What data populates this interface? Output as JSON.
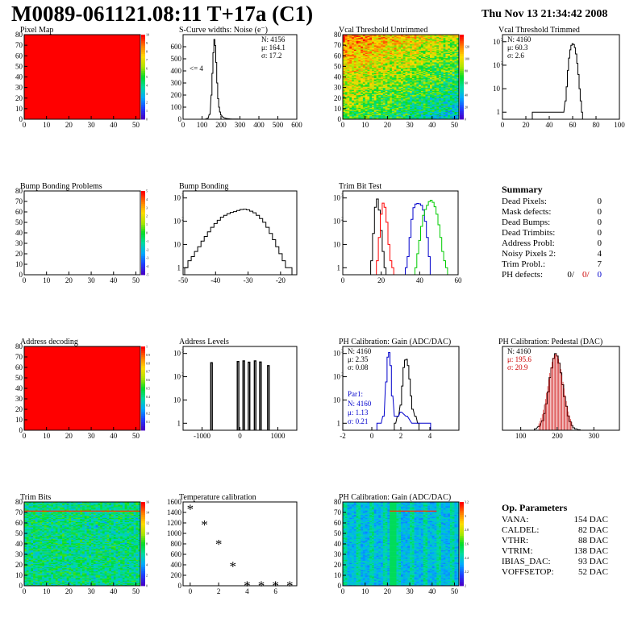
{
  "page": {
    "title": "M0089-061121.08:11 T+17a (C1)",
    "date": "Thu Nov 13 21:34:42 2008"
  },
  "chart_data": [
    {
      "id": "pixel-map",
      "type": "heatmap",
      "title": "Pixel Map",
      "xlim": [
        0,
        52
      ],
      "ylim": [
        0,
        80
      ],
      "xticks": [
        0,
        10,
        20,
        30,
        40,
        50
      ],
      "yticks": [
        0,
        10,
        20,
        30,
        40,
        50,
        60,
        70,
        80
      ],
      "fill": "uniform",
      "fill_color": "#ff0000",
      "zlim": [
        0,
        10
      ],
      "palette_ticks": [
        0,
        1,
        2,
        3,
        4,
        5,
        6,
        7,
        8,
        9,
        10
      ]
    },
    {
      "id": "scurve-noise",
      "type": "histogram",
      "title": "S-Curve widths: Noise (e⁻)",
      "xlim": [
        0,
        600
      ],
      "ylim": [
        0,
        700
      ],
      "xticks": [
        0,
        100,
        200,
        300,
        400,
        500,
        600
      ],
      "yticks": [
        0,
        100,
        200,
        300,
        400,
        500,
        600
      ],
      "x": [
        120,
        130,
        140,
        150,
        155,
        160,
        165,
        170,
        175,
        180,
        185,
        190,
        195,
        200,
        210,
        220,
        230,
        240,
        250,
        260,
        270,
        280,
        290
      ],
      "y": [
        2,
        8,
        40,
        200,
        380,
        550,
        660,
        610,
        470,
        300,
        170,
        100,
        60,
        35,
        18,
        10,
        6,
        4,
        3,
        2,
        2,
        1,
        1
      ],
      "annotation": "<= 4",
      "stats": {
        "N": "4156",
        "mu": "164.1",
        "sigma": "17.2"
      }
    },
    {
      "id": "vcal-untrimmed",
      "type": "heatmap",
      "title": "Vcal Threshold Untrimmed",
      "xlim": [
        0,
        52
      ],
      "ylim": [
        0,
        80
      ],
      "xticks": [
        0,
        10,
        20,
        30,
        40,
        50
      ],
      "yticks": [
        0,
        10,
        20,
        30,
        40,
        50,
        60,
        70,
        80
      ],
      "fill": "gradient",
      "zlim": [
        0,
        140
      ],
      "palette_ticks": [
        0,
        20,
        40,
        60,
        80,
        100,
        120
      ]
    },
    {
      "id": "vcal-trimmed",
      "type": "histogram",
      "title": "Vcal Threshold Trimmed",
      "log_y": true,
      "xlim": [
        0,
        100
      ],
      "ylim_log": [
        0.5,
        2000
      ],
      "xticks": [
        0,
        20,
        40,
        60,
        80,
        100
      ],
      "log_ticks": [
        1,
        10,
        100,
        1000
      ],
      "x": [
        26,
        30,
        52,
        54,
        55,
        56,
        57,
        58,
        59,
        60,
        61,
        62,
        63,
        64,
        65,
        66,
        67,
        68
      ],
      "y": [
        1,
        1,
        1,
        3,
        12,
        60,
        200,
        450,
        700,
        820,
        760,
        560,
        300,
        120,
        40,
        10,
        3,
        1
      ],
      "stats": {
        "N": "4160",
        "mu": "60.3",
        "sigma": "2.6"
      }
    },
    {
      "id": "bump-bonding-problems",
      "type": "heatmap",
      "title": "Bump Bonding Problems",
      "xlim": [
        0,
        52
      ],
      "ylim": [
        0,
        80
      ],
      "xticks": [
        0,
        10,
        20,
        30,
        40,
        50
      ],
      "yticks": [
        0,
        10,
        20,
        30,
        40,
        50,
        60,
        70,
        80
      ],
      "fill": "empty",
      "zlim": [
        -5,
        5
      ],
      "palette_ticks": [
        -5,
        -4,
        -3,
        -2,
        -1,
        0,
        1,
        2,
        3,
        4,
        5
      ]
    },
    {
      "id": "bump-bonding",
      "type": "histogram",
      "title": "Bump Bonding",
      "log_y": true,
      "xlim": [
        -50,
        -15
      ],
      "ylim_log": [
        0.5,
        2000
      ],
      "xticks": [
        -50,
        -40,
        -30,
        -20
      ],
      "log_ticks": [
        1,
        10,
        100,
        1000
      ],
      "x": [
        -49,
        -48,
        -47,
        -46,
        -45,
        -44,
        -43,
        -42,
        -41,
        -40,
        -39,
        -38,
        -37,
        -36,
        -35,
        -34,
        -33,
        -32,
        -31,
        -30,
        -29,
        -28,
        -27,
        -26,
        -25,
        -24,
        -23,
        -22,
        -21,
        -20,
        -19,
        -18,
        -17
      ],
      "y": [
        1,
        2,
        3,
        5,
        8,
        14,
        22,
        35,
        55,
        80,
        110,
        150,
        180,
        210,
        240,
        260,
        290,
        320,
        330,
        310,
        270,
        230,
        180,
        130,
        90,
        55,
        30,
        16,
        8,
        4,
        2,
        1,
        1
      ]
    },
    {
      "id": "trim-bit-test",
      "type": "histogram",
      "title": "Trim Bit Test",
      "log_y": true,
      "xlim": [
        0,
        60
      ],
      "ylim_log": [
        0.5,
        2000
      ],
      "xticks": [
        0,
        20,
        40,
        60
      ],
      "log_ticks": [
        1,
        10,
        100,
        1000
      ],
      "series": [
        {
          "color": "#000000",
          "x": [
            15,
            16,
            17,
            18,
            19,
            20,
            21,
            22
          ],
          "y": [
            2,
            30,
            400,
            900,
            300,
            40,
            5,
            1
          ]
        },
        {
          "color": "#ff0000",
          "x": [
            18,
            19,
            20,
            21,
            22,
            23,
            24,
            25,
            26
          ],
          "y": [
            2,
            20,
            200,
            600,
            400,
            90,
            10,
            2,
            1
          ]
        },
        {
          "color": "#0000cc",
          "x": [
            33,
            34,
            35,
            36,
            37,
            38,
            39,
            40,
            41,
            42,
            43,
            44,
            45
          ],
          "y": [
            1,
            3,
            20,
            120,
            380,
            550,
            580,
            560,
            480,
            300,
            100,
            20,
            3
          ]
        },
        {
          "color": "#00cc00",
          "x": [
            38,
            39,
            40,
            41,
            42,
            43,
            44,
            45,
            46,
            47,
            48,
            49,
            50,
            51,
            52,
            53,
            54
          ],
          "y": [
            1,
            4,
            15,
            60,
            180,
            320,
            480,
            700,
            800,
            650,
            420,
            200,
            70,
            20,
            5,
            2,
            1
          ]
        }
      ]
    },
    {
      "id": "address-decoding",
      "type": "heatmap",
      "title": "Address decoding",
      "xlim": [
        0,
        52
      ],
      "ylim": [
        0,
        80
      ],
      "xticks": [
        0,
        10,
        20,
        30,
        40,
        50
      ],
      "yticks": [
        0,
        10,
        20,
        30,
        40,
        50,
        60,
        70,
        80
      ],
      "fill": "uniform",
      "fill_color": "#ff0000",
      "zlim": [
        0,
        1
      ],
      "palette_ticks": [
        0.1,
        0.2,
        0.3,
        0.4,
        0.5,
        0.6,
        0.7,
        0.8,
        0.9,
        1
      ]
    },
    {
      "id": "address-levels",
      "type": "histogram",
      "title": "Address Levels",
      "log_y": true,
      "xlim": [
        -1500,
        1500
      ],
      "ylim_log": [
        0.5,
        2000
      ],
      "xticks": [
        -1000,
        0,
        1000
      ],
      "log_ticks": [
        1,
        10,
        100,
        1000
      ],
      "peaks": [
        {
          "x": -750,
          "height": 400
        },
        {
          "x": -50,
          "height": 450
        },
        {
          "x": 100,
          "height": 480
        },
        {
          "x": 240,
          "height": 420
        },
        {
          "x": 400,
          "height": 480
        },
        {
          "x": 540,
          "height": 430
        },
        {
          "x": 750,
          "height": 300
        }
      ]
    },
    {
      "id": "ph-gain",
      "type": "histogram",
      "title": "PH Calibration: Gain (ADC/DAC)",
      "log_y": true,
      "xlim": [
        -2,
        6
      ],
      "ylim_log": [
        0.5,
        2000
      ],
      "xticks": [
        -2,
        0,
        2,
        4
      ],
      "log_ticks": [
        1,
        10,
        100,
        1000
      ],
      "series": [
        {
          "color": "#000000",
          "x": [
            1.6,
            1.8,
            2.0,
            2.1,
            2.2,
            2.3,
            2.4,
            2.5,
            2.6,
            2.7,
            2.8,
            3.0,
            3.2
          ],
          "y": [
            1,
            2,
            6,
            40,
            250,
            520,
            560,
            300,
            80,
            15,
            4,
            2,
            1
          ]
        },
        {
          "color": "#0000cc",
          "x": [
            0.4,
            0.6,
            0.8,
            1.0,
            1.1,
            1.2,
            1.3,
            1.4,
            1.6,
            1.8,
            2.0,
            2.4,
            2.8,
            3.2,
            3.6,
            4.0
          ],
          "y": [
            1,
            1,
            2,
            60,
            700,
            1100,
            300,
            15,
            2,
            2,
            3,
            2,
            1,
            1,
            1,
            1
          ]
        }
      ],
      "stats": {
        "N": "4160",
        "mu": "2.35",
        "sigma": "0.08"
      },
      "stats2": {
        "label": "Par1:",
        "N": "4160",
        "mu": "1.13",
        "sigma": "0.21"
      }
    },
    {
      "id": "ph-pedestal",
      "type": "histogram",
      "title": "PH Calibration: Pedestal (DAC)",
      "xlim": [
        50,
        370
      ],
      "ylim": [
        0,
        175
      ],
      "xticks": [
        100,
        200,
        300
      ],
      "yticks": [],
      "x": [
        140,
        150,
        160,
        165,
        170,
        175,
        180,
        185,
        190,
        195,
        200,
        205,
        210,
        215,
        220,
        225,
        230,
        235,
        240,
        245,
        250,
        260
      ],
      "y": [
        3,
        8,
        20,
        35,
        55,
        80,
        110,
        130,
        150,
        160,
        155,
        140,
        120,
        95,
        70,
        50,
        30,
        18,
        10,
        5,
        3,
        1
      ],
      "fit_mu": 195.6,
      "fit_sigma": 20.9,
      "stats": {
        "N": "4160",
        "mu": "195.6",
        "sigma": "20.9"
      }
    },
    {
      "id": "trim-bits",
      "type": "heatmap",
      "title": "Trim Bits",
      "xlim": [
        0,
        52
      ],
      "ylim": [
        0,
        80
      ],
      "xticks": [
        0,
        10,
        20,
        30,
        40,
        50
      ],
      "yticks": [
        0,
        10,
        20,
        30,
        40,
        50,
        60,
        70,
        80
      ],
      "fill": "noise-green",
      "zlim": [
        0,
        16
      ],
      "palette_ticks": [
        0,
        2,
        4,
        6,
        8,
        10,
        12,
        14,
        16
      ]
    },
    {
      "id": "temperature-calibration",
      "type": "scatter",
      "title": "Temperature calibration",
      "xlim": [
        -0.5,
        7.5
      ],
      "ylim": [
        0,
        1600
      ],
      "xticks": [
        0,
        2,
        4,
        6
      ],
      "yticks": [
        0,
        200,
        400,
        600,
        800,
        1000,
        1200,
        1400,
        1600
      ],
      "x": [
        0,
        1,
        2,
        3,
        4,
        5,
        6,
        7
      ],
      "y": [
        1470,
        1170,
        800,
        380,
        10,
        10,
        10,
        10
      ]
    },
    {
      "id": "ph-gain-map",
      "type": "heatmap",
      "title": "PH Calibration: Gain (ADC/DAC)",
      "xlim": [
        0,
        52
      ],
      "ylim": [
        0,
        80
      ],
      "xticks": [
        0,
        10,
        20,
        30,
        40,
        50
      ],
      "yticks": [
        0,
        10,
        20,
        30,
        40,
        50,
        60,
        70,
        80
      ],
      "fill": "columns-cyan",
      "zlim": [
        2,
        3.2
      ],
      "palette_ticks": [
        2,
        2.2,
        2.4,
        2.6,
        2.8,
        3,
        3.2
      ]
    }
  ],
  "summary": {
    "title": "Summary",
    "rows": [
      {
        "label": "Dead Pixels:",
        "value": "0"
      },
      {
        "label": "Mask defects:",
        "value": "0"
      },
      {
        "label": "Dead Bumps:",
        "value": "0"
      },
      {
        "label": "Dead Trimbits:",
        "value": "0"
      },
      {
        "label": "Address Probl:",
        "value": "0"
      },
      {
        "label": "Noisy Pixels 2:",
        "value": "4"
      },
      {
        "label": "Trim Probl.:",
        "value": "7"
      }
    ],
    "ph_defects": {
      "label": "PH defects:",
      "v1": "0/",
      "v2": "0/",
      "v3": "0",
      "c2": "#cc0000",
      "c3": "#0000cc"
    }
  },
  "op_params": {
    "title": "Op. Parameters",
    "rows": [
      {
        "label": "VANA:",
        "value": "154 DAC"
      },
      {
        "label": "CALDEL:",
        "value": "82 DAC"
      },
      {
        "label": "VTHR:",
        "value": "88 DAC"
      },
      {
        "label": "VTRIM:",
        "value": "138 DAC"
      },
      {
        "label": "IBIAS_DAC:",
        "value": "93 DAC"
      },
      {
        "label": "VOFFSETOP:",
        "value": "52 DAC"
      }
    ]
  }
}
